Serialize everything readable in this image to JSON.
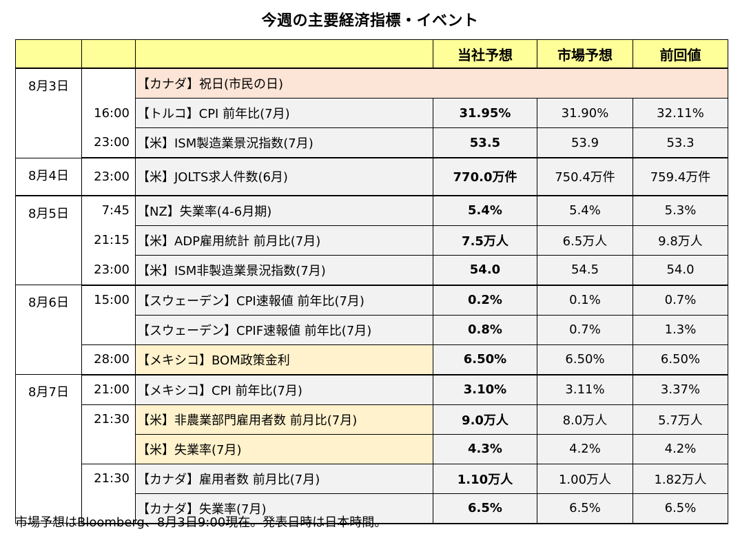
{
  "title": "今週の主要経済指標・イベント",
  "headers": {
    "date": "",
    "time": "",
    "event": "",
    "ours": "当社予想",
    "market": "市場予想",
    "previous": "前回値"
  },
  "rows": [
    {
      "date": "8月3日",
      "time": "",
      "event": "【カナダ】祝日(市民の日)",
      "ours": "",
      "market": "",
      "previous": ""
    },
    {
      "date": "",
      "time": "16:00",
      "event": "【トルコ】CPI 前年比(7月)",
      "ours": "31.95%",
      "market": "31.90%",
      "previous": "32.11%"
    },
    {
      "date": "",
      "time": "23:00",
      "event": "【米】ISM製造業景況指数(7月)",
      "ours": "53.5",
      "market": "53.9",
      "previous": "53.3"
    },
    {
      "date": "8月4日",
      "time": "23:00",
      "event": "【米】JOLTS求人件数(6月)",
      "ours": "770.0万件",
      "market": "750.4万件",
      "previous": "759.4万件"
    },
    {
      "date": "8月5日",
      "time": "7:45",
      "event": "【NZ】失業率(4-6月期)",
      "ours": "5.4%",
      "market": "5.4%",
      "previous": "5.3%"
    },
    {
      "date": "",
      "time": "21:15",
      "event": "【米】ADP雇用統計 前月比(7月)",
      "ours": "7.5万人",
      "market": "6.5万人",
      "previous": "9.8万人"
    },
    {
      "date": "",
      "time": "23:00",
      "event": "【米】ISM非製造業景況指数(7月)",
      "ours": "54.0",
      "market": "54.5",
      "previous": "54.0"
    },
    {
      "date": "8月6日",
      "time": "15:00",
      "event": "【スウェーデン】CPI速報値 前年比(7月)",
      "ours": "0.2%",
      "market": "0.1%",
      "previous": "0.7%"
    },
    {
      "date": "",
      "time": "",
      "event": "【スウェーデン】CPIF速報値 前年比(7月)",
      "ours": "0.8%",
      "market": "0.7%",
      "previous": "1.3%"
    },
    {
      "date": "",
      "time": "28:00",
      "event": "【メキシコ】BOM政策金利",
      "ours": "6.50%",
      "market": "6.50%",
      "previous": "6.50%"
    },
    {
      "date": "8月7日",
      "time": "21:00",
      "event": "【メキシコ】CPI 前年比(7月)",
      "ours": "3.10%",
      "market": "3.11%",
      "previous": "3.37%"
    },
    {
      "date": "",
      "time": "21:30",
      "event": "【米】非農業部門雇用者数 前月比(7月)",
      "ours": "9.0万人",
      "market": "8.0万人",
      "previous": "5.7万人"
    },
    {
      "date": "",
      "time": "",
      "event": "【米】失業率(7月)",
      "ours": "4.3%",
      "market": "4.2%",
      "previous": "4.2%"
    },
    {
      "date": "",
      "time": "21:30",
      "event": "【カナダ】雇用者数 前月比(7月)",
      "ours": "1.10万人",
      "market": "1.00万人",
      "previous": "1.82万人"
    },
    {
      "date": "",
      "time": "",
      "event": "【カナダ】失業率(7月)",
      "ours": "6.5%",
      "market": "6.5%",
      "previous": "6.5%"
    }
  ],
  "footnote": "市場予想はBloomberg、8月3日9:00現在。発表日時は日本時間。",
  "colors": {
    "header_bg": "#ffff99",
    "holiday_bg": "#fce4d6",
    "highlight_bg": "#fff2cc",
    "value_bg": "#f2f2f2"
  }
}
